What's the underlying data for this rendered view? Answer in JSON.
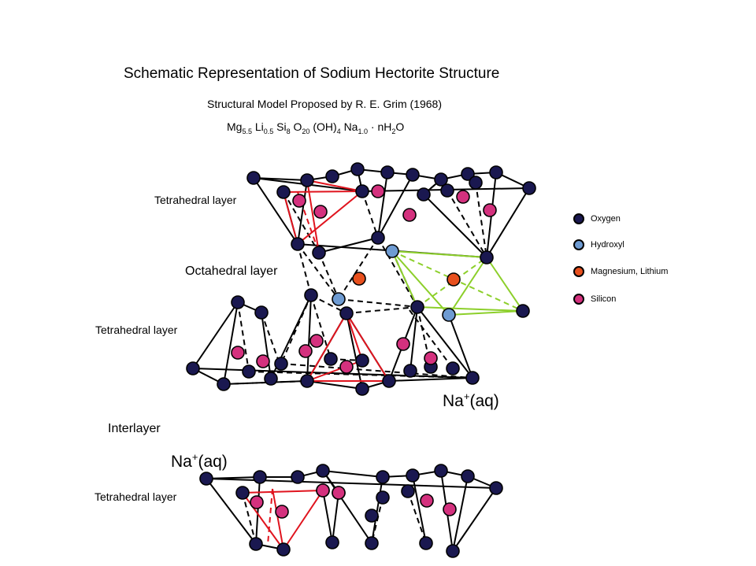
{
  "title": "Schematic Representation of Sodium Hectorite Structure",
  "subtitle": "Structural Model Proposed by R. E. Grim (1968)",
  "formula": {
    "parts": [
      {
        "base": "Mg",
        "sub": "5.5"
      },
      {
        "base": "Li",
        "sub": "0.5"
      },
      {
        "base": "Si",
        "sub": "8"
      },
      {
        "base": "O",
        "sub": "20"
      },
      {
        "base": "(OH)",
        "sub": "4"
      },
      {
        "base": "Na",
        "sub": "1.0"
      }
    ],
    "hydrate": {
      "dot": "·",
      "prefix": "nH",
      "sub": "2",
      "suffix": "O"
    }
  },
  "labels": {
    "tetra_top": "Tetrahedral layer",
    "octa": "Octahedral layer",
    "tetra_mid": "Tetrahedral layer",
    "interlayer": "Interlayer",
    "tetra_bottom": "Tetrahedral layer"
  },
  "sodium": {
    "base": "Na",
    "charge": "+",
    "state": "(aq)"
  },
  "legend": [
    {
      "label": "Oxygen",
      "color": "#1a1850"
    },
    {
      "label": "Hydroxyl",
      "color": "#6e9bd2"
    },
    {
      "label": "Magnesium, Lithium",
      "color": "#e8501e"
    },
    {
      "label": "Silicon",
      "color": "#d4317e"
    }
  ],
  "colors": {
    "oxygen": "#1a1850",
    "hydroxyl": "#6e9bd2",
    "magnesium": "#e8501e",
    "silicon": "#d4317e",
    "highlight_tetra": "#e0141e",
    "highlight_octa": "#8ccf2a",
    "bond": "#000000"
  }
}
